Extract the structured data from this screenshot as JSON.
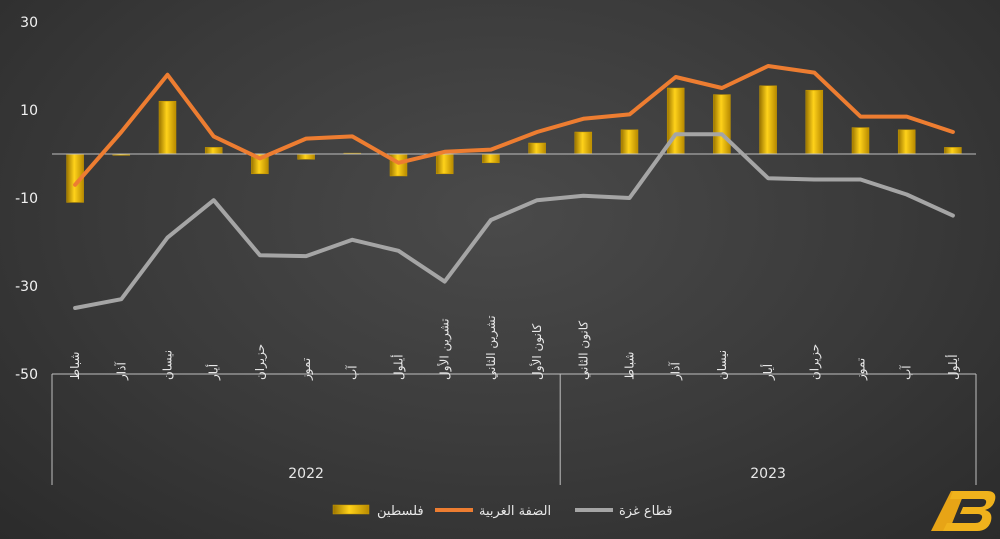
{
  "chart_data": {
    "type": "bar",
    "categories": [
      "شباط",
      "آذار",
      "نيسان",
      "أيار",
      "حزيران",
      "تموز",
      "آب",
      "أيلول",
      "تشرين الأول",
      "تشرين الثاني",
      "كانون الأول",
      "كانون الثاني",
      "شباط",
      "آذار",
      "نيسان",
      "أيار",
      "حزيران",
      "تموز",
      "آب",
      "أيلول"
    ],
    "year_groups": [
      {
        "label": "2022",
        "count": 11
      },
      {
        "label": "2023",
        "count": 9
      }
    ],
    "series": [
      {
        "name": "فلسطين",
        "type": "bar",
        "color": "#f2c200",
        "values": [
          -11,
          -0.3,
          12,
          1.5,
          -4.5,
          -1.2,
          0.2,
          -5,
          -4.5,
          -2,
          2.5,
          5,
          5.5,
          15,
          13.5,
          15.5,
          14.5,
          6,
          5.5,
          1.5
        ]
      },
      {
        "name": "الضفة الغربية",
        "type": "line",
        "color": "#ed7d31",
        "values": [
          -7,
          5,
          18,
          4,
          -1,
          3.5,
          4,
          -2,
          0.5,
          1,
          5,
          8,
          9,
          17.5,
          15,
          20,
          18.5,
          8.5,
          8.5,
          5
        ]
      },
      {
        "name": "قطاع غزة",
        "type": "line",
        "color": "#a5a5a5",
        "values": [
          -35,
          -33,
          -19,
          -10.5,
          -23,
          -23.2,
          -19.5,
          -22,
          -29,
          -15,
          -10.5,
          -9.5,
          -10,
          4.5,
          4.5,
          -5.5,
          -5.8,
          -5.8,
          -9.2,
          -14
        ]
      }
    ],
    "yticks": [
      30,
      10,
      -10,
      -30,
      -50
    ],
    "ylim": [
      -50,
      30
    ],
    "grid": false,
    "legend_position": "bottom"
  },
  "logo_text": "AB"
}
